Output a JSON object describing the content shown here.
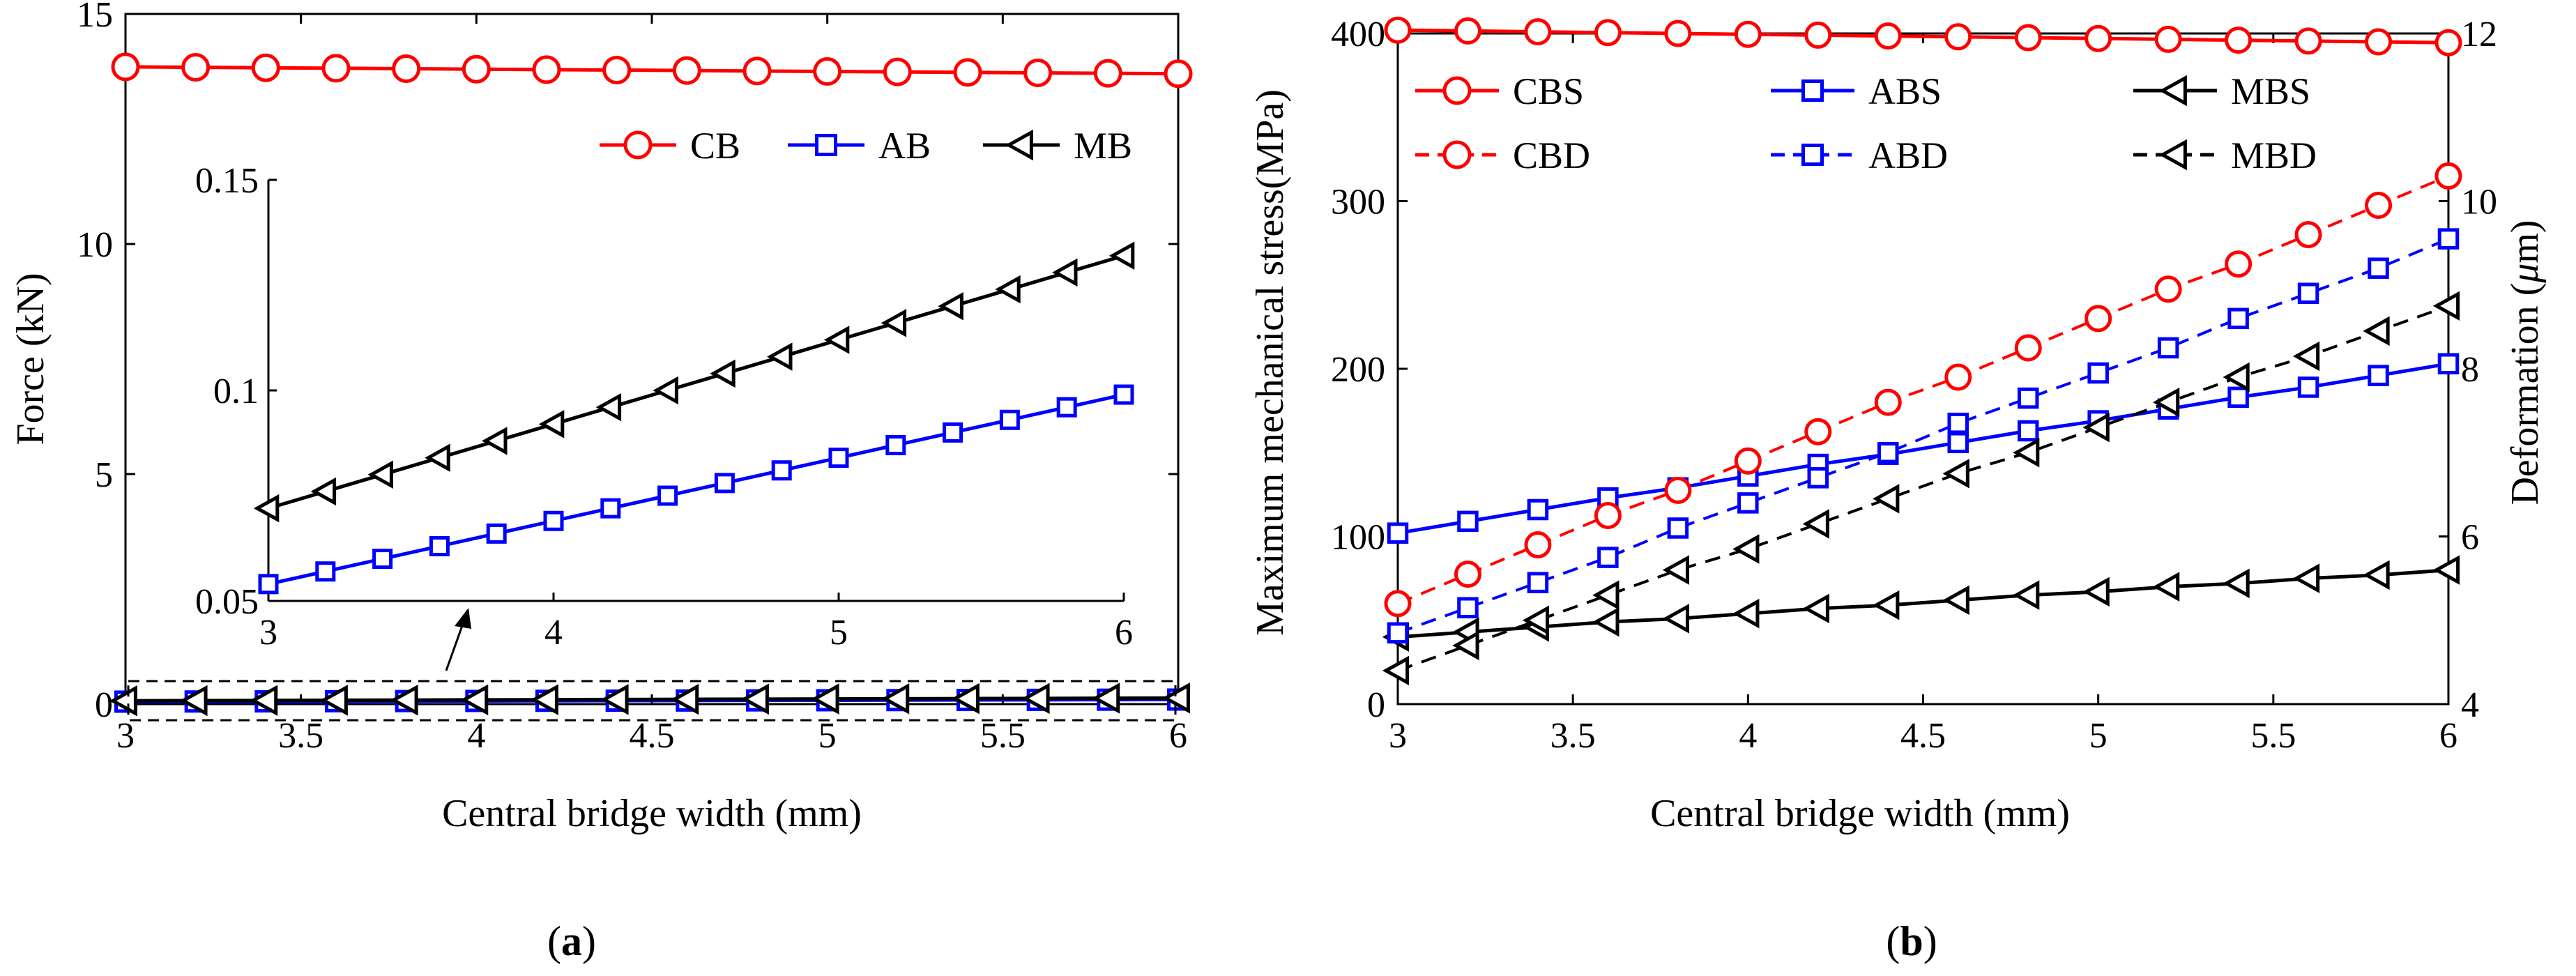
{
  "panels": [
    {
      "id": "a",
      "open": "(",
      "letter": "a",
      "close": ")"
    },
    {
      "id": "b",
      "open": "(",
      "letter": "b",
      "close": ")"
    }
  ],
  "chart_data": [
    {
      "id": "a",
      "type": "line",
      "xlabel": "Central bridge width (mm)",
      "ylabel": "Force (kN)",
      "xlim": [
        3,
        6
      ],
      "ylim": [
        0,
        15
      ],
      "xticks": [
        "3",
        "3.5",
        "4",
        "4.5",
        "5",
        "5.5",
        "6"
      ],
      "yticks": [
        "0",
        "5",
        "10",
        "15"
      ],
      "grid": false,
      "legend": {
        "placement": "top-right",
        "columns": 3
      },
      "x": [
        3,
        3.2,
        3.4,
        3.6,
        3.8,
        4,
        4.2,
        4.4,
        4.6,
        4.8,
        5,
        5.2,
        5.4,
        5.6,
        5.8,
        6
      ],
      "series": [
        {
          "name": "CB",
          "color": "#ff0000",
          "marker": "circle",
          "dash": "solid",
          "values": [
            13.85,
            13.84,
            13.83,
            13.82,
            13.81,
            13.8,
            13.79,
            13.78,
            13.77,
            13.76,
            13.75,
            13.74,
            13.73,
            13.72,
            13.71,
            13.7
          ]
        },
        {
          "name": "AB",
          "color": "#0000ff",
          "marker": "square",
          "dash": "solid",
          "values": [
            0.054,
            0.057,
            0.06,
            0.063,
            0.066,
            0.069,
            0.072,
            0.075,
            0.078,
            0.081,
            0.084,
            0.087,
            0.09,
            0.093,
            0.096,
            0.099
          ]
        },
        {
          "name": "MB",
          "color": "#000000",
          "marker": "triangle-left",
          "dash": "solid",
          "values": [
            0.072,
            0.076,
            0.08,
            0.084,
            0.088,
            0.092,
            0.096,
            0.1,
            0.104,
            0.108,
            0.112,
            0.116,
            0.12,
            0.124,
            0.128,
            0.132
          ]
        }
      ],
      "annotations": [
        "dashed rectangle around y≈0 with arrow pointing to inset"
      ],
      "inset": {
        "type": "line",
        "xlim": [
          3,
          6
        ],
        "ylim": [
          0.05,
          0.15
        ],
        "xticks": [
          "3",
          "4",
          "5",
          "6"
        ],
        "yticks": [
          "0.05",
          "0.1",
          "0.15"
        ],
        "x": [
          3,
          3.2,
          3.4,
          3.6,
          3.8,
          4,
          4.2,
          4.4,
          4.6,
          4.8,
          5,
          5.2,
          5.4,
          5.6,
          5.8,
          6
        ],
        "series": [
          {
            "name": "AB",
            "color": "#0000ff",
            "marker": "square",
            "values": [
              0.054,
              0.057,
              0.06,
              0.063,
              0.066,
              0.069,
              0.072,
              0.075,
              0.078,
              0.081,
              0.084,
              0.087,
              0.09,
              0.093,
              0.096,
              0.099
            ]
          },
          {
            "name": "MB",
            "color": "#000000",
            "marker": "triangle-left",
            "values": [
              0.072,
              0.076,
              0.08,
              0.084,
              0.088,
              0.092,
              0.096,
              0.1,
              0.104,
              0.108,
              0.112,
              0.116,
              0.12,
              0.124,
              0.128,
              0.132
            ]
          }
        ]
      }
    },
    {
      "id": "b",
      "type": "line",
      "xlabel": "Central bridge width (mm)",
      "ylabel": "Maximum mechanical stress(MPa)",
      "y2label": "Deformation (μm)",
      "y2label_parts": [
        "Deformation (",
        "μ",
        "m)"
      ],
      "xlim": [
        3,
        6
      ],
      "ylim": [
        0,
        400
      ],
      "y2lim": [
        4,
        12
      ],
      "xticks": [
        "3",
        "3.5",
        "4",
        "4.5",
        "5",
        "5.5",
        "6"
      ],
      "yticks": [
        "0",
        "100",
        "200",
        "300",
        "400"
      ],
      "y2ticks": [
        "4",
        "6",
        "8",
        "10",
        "12"
      ],
      "grid": false,
      "legend": {
        "placement": "top",
        "columns": 3
      },
      "x": [
        3,
        3.2,
        3.4,
        3.6,
        3.8,
        4,
        4.2,
        4.4,
        4.6,
        4.8,
        5,
        5.2,
        5.4,
        5.6,
        5.8,
        6
      ],
      "series": [
        {
          "name": "CBS",
          "axis": "left",
          "color": "#ff0000",
          "marker": "circle",
          "dash": "solid",
          "values": [
            402,
            401.5,
            401,
            400.5,
            400,
            399.5,
            399,
            398.5,
            398,
            397.5,
            397,
            396.5,
            396,
            395.5,
            395,
            394.5
          ]
        },
        {
          "name": "ABS",
          "axis": "left",
          "color": "#0000ff",
          "marker": "square",
          "dash": "solid",
          "values": [
            102,
            109,
            116,
            123,
            129,
            136,
            143,
            149,
            156,
            163,
            169,
            176,
            183,
            189,
            196,
            203
          ]
        },
        {
          "name": "MBS",
          "axis": "left",
          "color": "#000000",
          "marker": "triangle-left",
          "dash": "solid",
          "values": [
            40,
            43,
            46,
            49,
            51,
            54,
            57,
            59,
            62,
            65,
            67,
            70,
            72,
            75,
            77,
            80
          ]
        },
        {
          "name": "CBD",
          "axis": "right",
          "color": "#ff0000",
          "marker": "circle",
          "dash": "dashed",
          "values": [
            5.2,
            5.55,
            5.9,
            6.25,
            6.55,
            6.9,
            7.25,
            7.6,
            7.9,
            8.25,
            8.6,
            8.95,
            9.25,
            9.6,
            9.95,
            10.3
          ]
        },
        {
          "name": "ABD",
          "axis": "right",
          "color": "#0000ff",
          "marker": "square",
          "dash": "dashed",
          "values": [
            4.85,
            5.15,
            5.45,
            5.75,
            6.1,
            6.4,
            6.7,
            7.0,
            7.35,
            7.65,
            7.95,
            8.25,
            8.6,
            8.9,
            9.2,
            9.55
          ]
        },
        {
          "name": "MBD",
          "axis": "right",
          "color": "#000000",
          "marker": "triangle-left",
          "dash": "dashed",
          "values": [
            4.4,
            4.7,
            5.0,
            5.3,
            5.6,
            5.85,
            6.15,
            6.45,
            6.75,
            7.0,
            7.3,
            7.6,
            7.9,
            8.15,
            8.45,
            8.75
          ]
        }
      ]
    }
  ]
}
